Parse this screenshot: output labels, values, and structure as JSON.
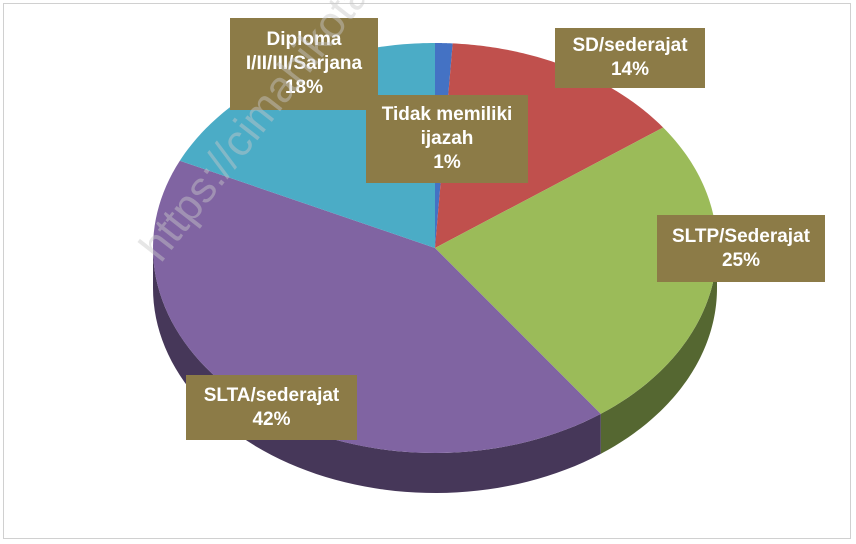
{
  "chart_data": {
    "type": "pie",
    "categories": [
      "Tidak memiliki ijazah",
      "SD/sederajat",
      "SLTP/Sederajat",
      "SLTA/sederajat",
      "Diploma I/II/III/Sarjana"
    ],
    "values": [
      1,
      14,
      25,
      42,
      18
    ],
    "value_labels": [
      "1%",
      "14%",
      "25%",
      "42%",
      "18%"
    ],
    "colors": [
      "#4472c4",
      "#c0504d",
      "#9bbb59",
      "#8064a2",
      "#4bacc6"
    ],
    "watermark": "https://cimahikota.bps.go.id"
  }
}
